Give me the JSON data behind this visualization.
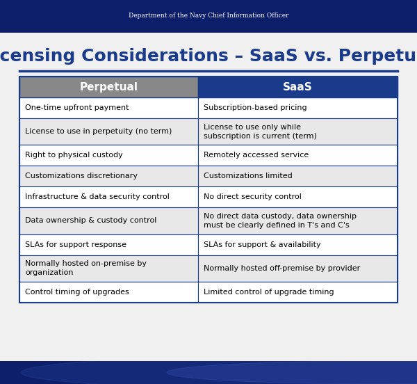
{
  "title": "Licensing Considerations – SaaS vs. Perpetual",
  "header_top": "Department of the Navy Chief Information Officer",
  "col_headers": [
    "Perpetual",
    "SaaS"
  ],
  "col_header_colors": [
    "#888888",
    "#1a3a8a"
  ],
  "col_header_text_color": "#ffffff",
  "rows": [
    [
      "One-time upfront payment",
      "Subscription-based pricing"
    ],
    [
      "License to use in perpetuity (no term)",
      "License to use only while\nsubscription is current (term)"
    ],
    [
      "Right to physical custody",
      "Remotely accessed service"
    ],
    [
      "Customizations discretionary",
      "Customizations limited"
    ],
    [
      "Infrastructure & data security control",
      "No direct security control"
    ],
    [
      "Data ownership & custody control",
      "No direct data custody, data ownership\nmust be clearly defined in T's and C's"
    ],
    [
      "SLAs for support response",
      "SLAs for support & availability"
    ],
    [
      "Normally hosted on-premise by\norganization",
      "Normally hosted off-premise by provider"
    ],
    [
      "Control timing of upgrades",
      "Limited control of upgrade timing"
    ]
  ],
  "row_bg_colors": [
    "#ffffff",
    "#e8e8e8",
    "#ffffff",
    "#e8e8e8",
    "#ffffff",
    "#e8e8e8",
    "#ffffff",
    "#e8e8e8",
    "#ffffff"
  ],
  "table_border_color": "#1a3a8a",
  "cell_text_color": "#000000",
  "header_bg_color": "#0d1f6b",
  "title_color": "#1a3a8a",
  "slide_bg": "#f0f0f0",
  "title_underline_color": "#1a3a8a",
  "header_text_color": "#ffffff"
}
